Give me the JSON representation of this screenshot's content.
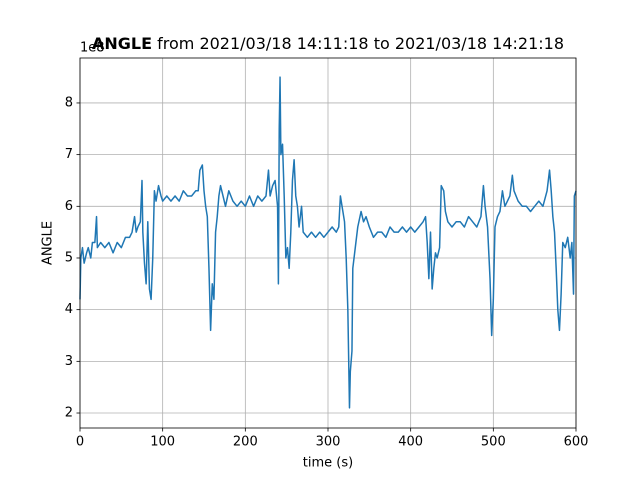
{
  "chart_data": {
    "type": "line",
    "title_bold": "ANGLE",
    "title_rest": " from 2021/03/18 14:11:18 to 2021/03/18 14:21:18",
    "x_label": "time (s)",
    "y_label": "ANGLE",
    "y_offset_label": "1e8",
    "xlim": [
      0,
      600
    ],
    "xticks": [
      0,
      100,
      200,
      300,
      400,
      500,
      600
    ],
    "ylim": [
      1.71,
      8.87
    ],
    "yticks": [
      2,
      3,
      4,
      5,
      6,
      7,
      8
    ],
    "grid": true,
    "x": [
      0,
      1,
      3,
      5,
      8,
      10,
      13,
      15,
      18,
      20,
      21,
      25,
      30,
      35,
      40,
      45,
      50,
      55,
      60,
      63,
      66,
      68,
      70,
      73,
      75,
      76,
      78,
      80,
      82,
      84,
      86,
      88,
      90,
      92,
      95,
      98,
      100,
      105,
      110,
      115,
      120,
      125,
      130,
      135,
      140,
      143,
      145,
      148,
      150,
      152,
      154,
      156,
      158,
      160,
      162,
      164,
      166,
      168,
      170,
      173,
      176,
      180,
      185,
      190,
      195,
      200,
      205,
      210,
      215,
      220,
      225,
      228,
      230,
      233,
      236,
      239,
      240,
      241,
      242,
      243,
      245,
      247,
      249,
      251,
      253,
      255,
      257,
      259,
      261,
      263,
      265,
      268,
      270,
      275,
      280,
      285,
      290,
      295,
      300,
      305,
      310,
      313,
      315,
      318,
      320,
      322,
      324,
      326,
      327,
      329,
      330,
      333,
      336,
      340,
      343,
      346,
      350,
      355,
      360,
      365,
      370,
      375,
      380,
      385,
      390,
      395,
      400,
      405,
      410,
      415,
      418,
      420,
      422,
      424,
      426,
      428,
      430,
      432,
      435,
      437,
      440,
      442,
      445,
      450,
      455,
      460,
      465,
      470,
      475,
      480,
      485,
      488,
      490,
      493,
      496,
      498,
      500,
      502,
      505,
      508,
      511,
      514,
      517,
      520,
      523,
      525,
      530,
      535,
      540,
      545,
      550,
      555,
      560,
      565,
      568,
      570,
      572,
      574,
      576,
      578,
      580,
      582,
      584,
      587,
      590,
      593,
      595,
      597,
      598,
      600
    ],
    "series": [
      {
        "name": "ANGLE",
        "color": "#1f77b4",
        "values": [
          4.2,
          5.0,
          5.2,
          4.9,
          5.1,
          5.2,
          5.0,
          5.3,
          5.3,
          5.8,
          5.2,
          5.3,
          5.2,
          5.3,
          5.1,
          5.3,
          5.2,
          5.4,
          5.4,
          5.5,
          5.8,
          5.5,
          5.6,
          5.7,
          6.5,
          5.5,
          4.9,
          4.5,
          5.7,
          4.4,
          4.2,
          5.0,
          6.3,
          6.1,
          6.4,
          6.2,
          6.1,
          6.2,
          6.1,
          6.2,
          6.1,
          6.3,
          6.2,
          6.2,
          6.3,
          6.3,
          6.7,
          6.8,
          6.3,
          6.0,
          5.8,
          4.8,
          3.6,
          4.5,
          4.2,
          5.5,
          5.8,
          6.2,
          6.4,
          6.2,
          6.0,
          6.3,
          6.1,
          6.0,
          6.1,
          6.0,
          6.2,
          6.0,
          6.2,
          6.1,
          6.2,
          6.7,
          6.2,
          6.4,
          6.5,
          6.0,
          4.5,
          7.5,
          8.5,
          7.0,
          7.2,
          6.2,
          5.0,
          5.2,
          4.8,
          5.5,
          6.5,
          6.9,
          6.2,
          6.0,
          5.6,
          6.0,
          5.5,
          5.4,
          5.5,
          5.4,
          5.5,
          5.4,
          5.5,
          5.6,
          5.5,
          5.6,
          6.2,
          5.9,
          5.7,
          5.0,
          4.0,
          2.1,
          2.8,
          3.2,
          4.8,
          5.2,
          5.6,
          5.9,
          5.7,
          5.8,
          5.6,
          5.4,
          5.5,
          5.5,
          5.4,
          5.6,
          5.5,
          5.5,
          5.6,
          5.5,
          5.6,
          5.5,
          5.6,
          5.7,
          5.8,
          5.3,
          4.6,
          5.5,
          4.4,
          4.8,
          5.1,
          5.0,
          5.2,
          6.4,
          6.3,
          5.9,
          5.7,
          5.6,
          5.7,
          5.7,
          5.6,
          5.8,
          5.7,
          5.6,
          5.8,
          6.4,
          6.0,
          5.6,
          4.6,
          3.5,
          4.2,
          5.6,
          5.8,
          5.9,
          6.3,
          6.0,
          6.1,
          6.2,
          6.6,
          6.3,
          6.1,
          6.0,
          6.0,
          5.9,
          6.0,
          6.1,
          6.0,
          6.3,
          6.7,
          6.3,
          5.8,
          5.5,
          4.8,
          4.0,
          3.6,
          4.3,
          5.3,
          5.2,
          5.4,
          5.0,
          5.3,
          4.3,
          6.2,
          6.3
        ]
      }
    ]
  }
}
